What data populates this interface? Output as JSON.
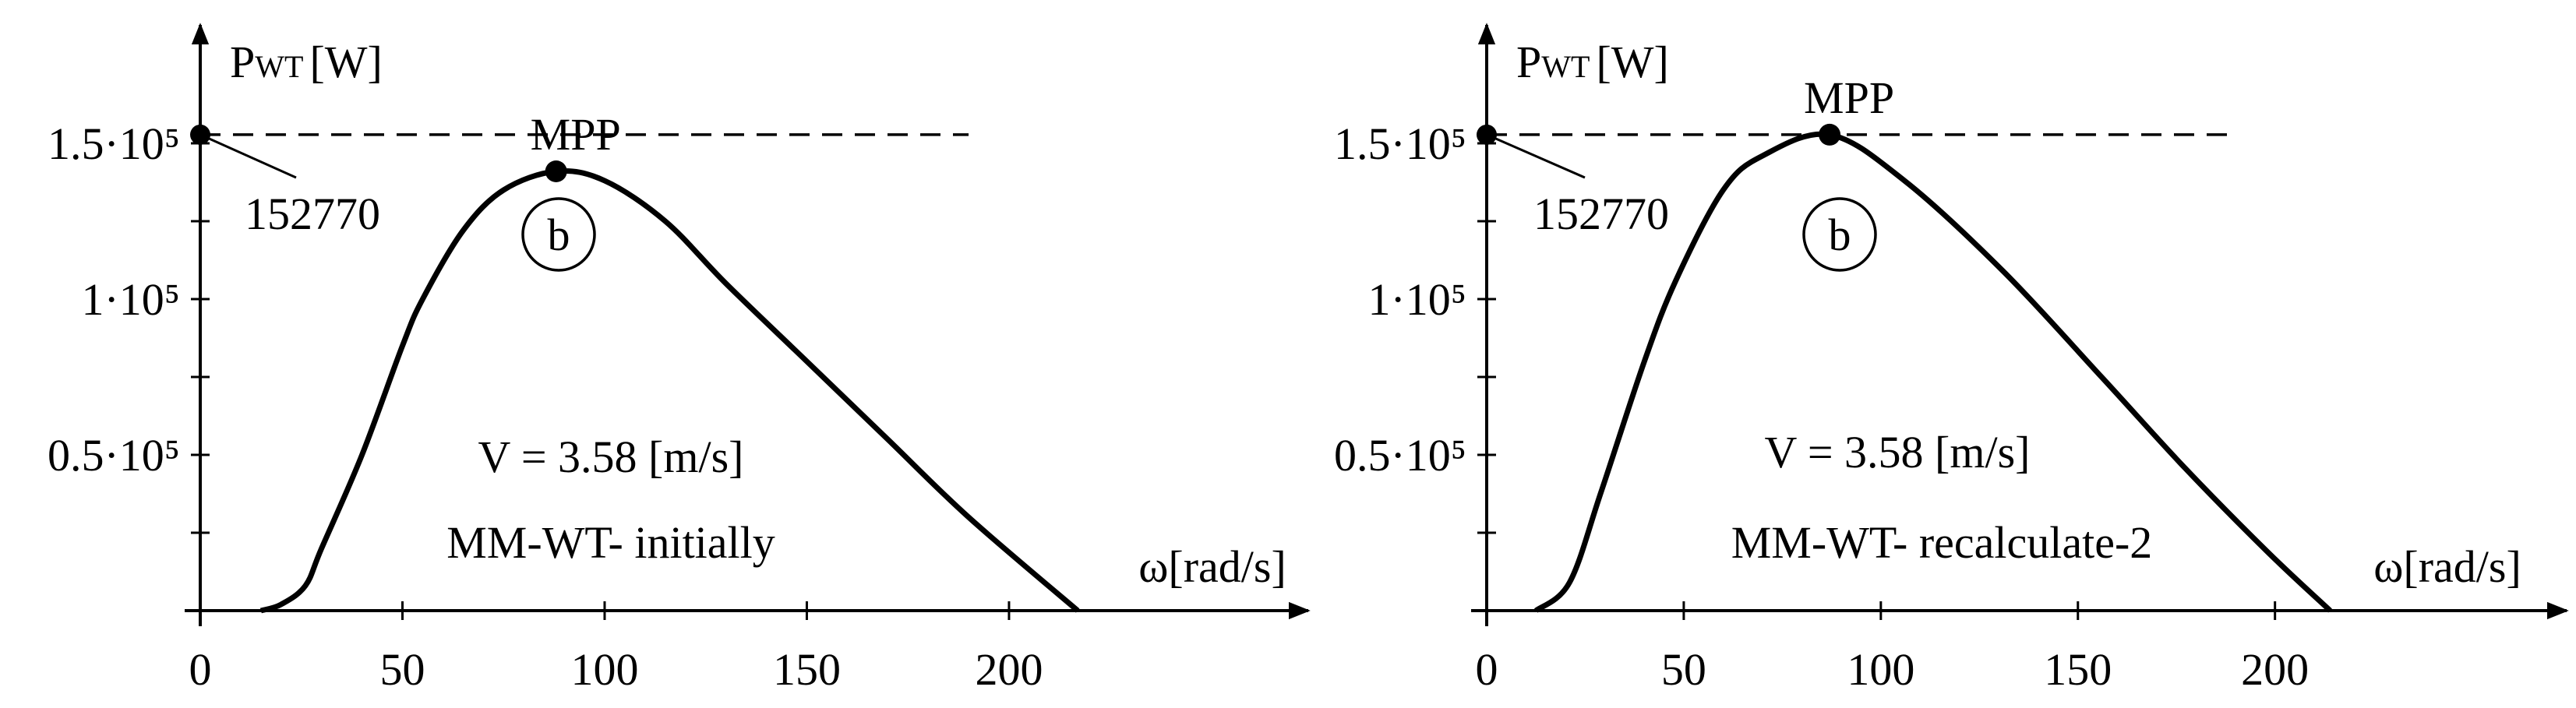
{
  "chart_data": [
    {
      "type": "line",
      "color": "#000000",
      "x": [
        15,
        20,
        26,
        30,
        40,
        50,
        55,
        65,
        75,
        88,
        100,
        115,
        130,
        150,
        170,
        190,
        217
      ],
      "values": [
        0,
        2000,
        8000,
        20000,
        50000,
        85000,
        100000,
        122000,
        135000,
        141000,
        138000,
        125000,
        105000,
        80000,
        55000,
        30000,
        0
      ],
      "xlim": [
        0,
        274
      ],
      "ylim": [
        0,
        188000
      ],
      "xticks": [
        0,
        50,
        100,
        150,
        200
      ],
      "yticks": [
        {
          "value": 50000,
          "label": "0.5·10⁵"
        },
        {
          "value": 100000,
          "label": "1·10⁵"
        },
        {
          "value": 150000,
          "label": "1.5·10⁵"
        }
      ],
      "minor_yticks": [
        25000,
        75000,
        125000
      ],
      "xlabel": "ω[rad/s]",
      "ylabel": "P",
      "ylabel_sub": "WT",
      "ylabel_unit": "[W]",
      "hline": {
        "value": 152770,
        "label": "152770",
        "xmax": 190
      },
      "point": {
        "x": 88,
        "y": 141000,
        "label": "MPP"
      },
      "annotations": [
        "b",
        "V = 3.58 [m/s]",
        "MM-WT- initially"
      ]
    },
    {
      "type": "line",
      "color": "#000000",
      "x": [
        12.5,
        21,
        29,
        40,
        48,
        60,
        70,
        87,
        106,
        131,
        156,
        177,
        198,
        214
      ],
      "values": [
        0,
        9000,
        38000,
        80000,
        106000,
        135000,
        146000,
        152770,
        138000,
        109000,
        75000,
        46000,
        19000,
        0
      ],
      "xlim": [
        0,
        274
      ],
      "ylim": [
        0,
        188000
      ],
      "xticks": [
        0,
        50,
        100,
        150,
        200
      ],
      "yticks": [
        {
          "value": 50000,
          "label": "0.5·10⁵"
        },
        {
          "value": 100000,
          "label": "1·10⁵"
        },
        {
          "value": 150000,
          "label": "1.5·10⁵"
        }
      ],
      "minor_yticks": [
        25000,
        75000,
        125000
      ],
      "xlabel": "ω[rad/s]",
      "ylabel": "P",
      "ylabel_sub": "WT",
      "ylabel_unit": "[W]",
      "hline": {
        "value": 152770,
        "label": "152770",
        "xmax": 190
      },
      "point": {
        "x": 87,
        "y": 152770,
        "label": "MPP"
      },
      "annotations": [
        "b",
        "V = 3.58 [m/s]",
        "MM-WT- recalculate-2"
      ]
    }
  ]
}
